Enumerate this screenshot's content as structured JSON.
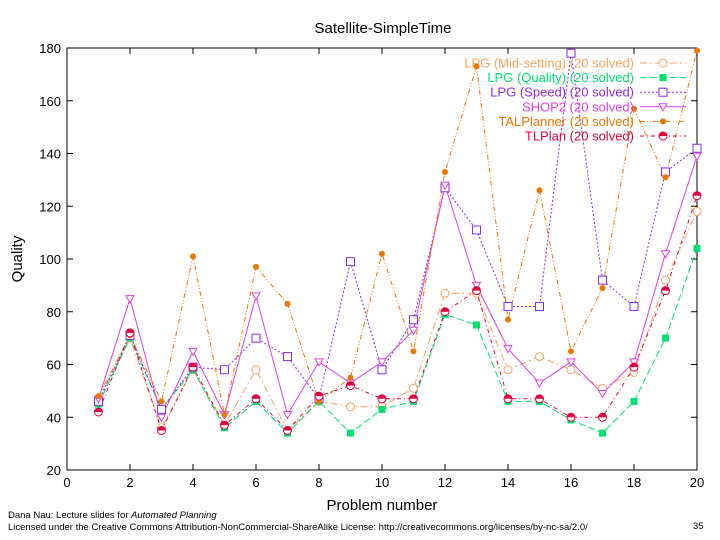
{
  "chart_data": {
    "type": "line",
    "title": "Satellite-SimpleTime",
    "xlabel": "Problem number",
    "ylabel": "Quality",
    "xlim": [
      0,
      20
    ],
    "ylim": [
      20,
      180
    ],
    "xticks": [
      0,
      2,
      4,
      6,
      8,
      10,
      12,
      14,
      16,
      18,
      20
    ],
    "yticks": [
      20,
      40,
      60,
      80,
      100,
      120,
      140,
      160,
      180
    ],
    "legend_position": "top-right",
    "grid": false,
    "x": [
      1,
      2,
      3,
      4,
      5,
      6,
      7,
      8,
      9,
      10,
      11,
      12,
      13,
      14,
      15,
      16,
      17,
      18,
      19,
      20
    ],
    "series": [
      {
        "name": "LPG (Mid-setting) (20 solved)",
        "color": "#f4a460",
        "marker": "circle-open",
        "values": [
          47,
          70,
          36,
          58,
          37,
          58,
          35,
          46,
          44,
          44,
          51,
          87,
          87,
          58,
          63,
          58,
          51,
          57,
          92,
          118
        ]
      },
      {
        "name": "LPG (Quality) (20 solved)",
        "color": "#00e070",
        "marker": "square-filled",
        "values": [
          45,
          70,
          43,
          58,
          36,
          46,
          34,
          46,
          34,
          43,
          46,
          79,
          75,
          46,
          46,
          39,
          34,
          46,
          70,
          104
        ]
      },
      {
        "name": "LPG (Speed) (20 solved)",
        "color": "#8a2be2",
        "marker": "square-open",
        "values": [
          46,
          71,
          43,
          59,
          58,
          70,
          63,
          47,
          99,
          58,
          77,
          127,
          111,
          82,
          82,
          178,
          92,
          82,
          133,
          142
        ]
      },
      {
        "name": "SHOP2 (20 solved)",
        "color": "#e040e0",
        "marker": "triangle-down-open",
        "values": [
          47,
          85,
          40,
          65,
          41,
          86,
          41,
          61,
          53,
          61,
          73,
          128,
          90,
          66,
          53,
          61,
          49,
          61,
          102,
          139
        ]
      },
      {
        "name": "TALPlanner (20 solved)",
        "color": "#ee7600",
        "marker": "circle-filled",
        "values": [
          48,
          71,
          46,
          101,
          41,
          97,
          83,
          46,
          55,
          102,
          65,
          133,
          173,
          77,
          126,
          65,
          89,
          157,
          131,
          179
        ]
      },
      {
        "name": "TLPlan (20 solved)",
        "color": "#e0003c",
        "marker": "circle-half",
        "values": [
          42,
          72,
          35,
          59,
          37,
          47,
          35,
          48,
          52,
          47,
          47,
          80,
          88,
          47,
          47,
          40,
          40,
          59,
          88,
          124
        ]
      }
    ]
  },
  "footer": {
    "line1_prefix": "Dana Nau: Lecture slides for ",
    "line1_italic": "Automated Planning",
    "line2": "Licensed under the Creative Commons Attribution-NonCommercial-ShareAlike License: http://creativecommons.org/licenses/by-nc-sa/2.0/"
  },
  "page_number": "35"
}
